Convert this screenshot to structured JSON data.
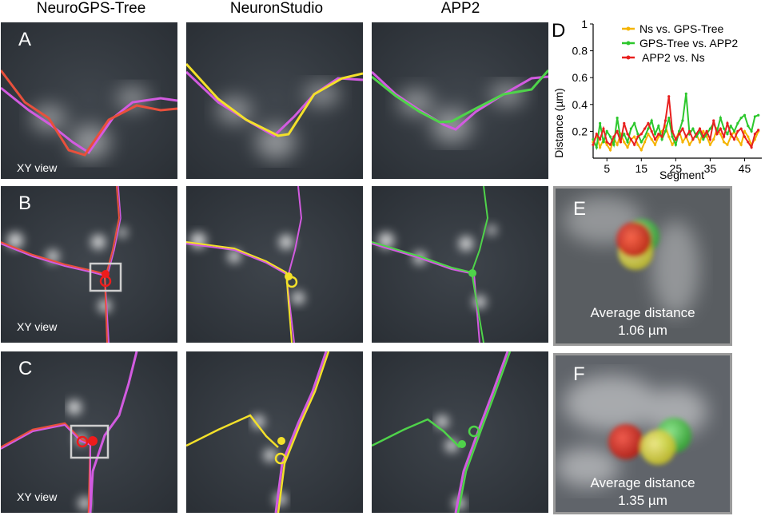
{
  "columns": [
    "NeuroGPS-Tree",
    "NeuronStudio",
    "APP2"
  ],
  "rows": [
    {
      "label": "A",
      "view": "XY view"
    },
    {
      "label": "B",
      "view": "XY view"
    },
    {
      "label": "C",
      "view": "XY view"
    }
  ],
  "colors": {
    "ns_vs_gps": "#f5b400",
    "gps_vs_app2": "#2cc72c",
    "app2_vs_ns": "#e8201f",
    "trace_purple": "#d25be0",
    "trace_red": "#e8503c",
    "trace_yellow": "#f3e02a",
    "trace_green": "#4fd34a"
  },
  "insets": [
    {
      "label": "E",
      "caption_line1": "Average distance",
      "caption_line2": "1.06 µm"
    },
    {
      "label": "F",
      "caption_line1": "Average distance",
      "caption_line2": "1.35 µm"
    }
  ],
  "chart_data": {
    "type": "line",
    "panel_label": "D",
    "xlabel": "Segment",
    "ylabel": "Distance (µm)",
    "xlim": [
      1,
      50
    ],
    "ylim": [
      0,
      1
    ],
    "xticks": [
      "5",
      "15",
      "25",
      "35",
      "45"
    ],
    "yticks": [
      "0.2",
      "0.4",
      "0.6",
      "0.8",
      "1"
    ],
    "legend_position": "top-right",
    "x": [
      1,
      2,
      3,
      4,
      5,
      6,
      7,
      8,
      9,
      10,
      11,
      12,
      13,
      14,
      15,
      16,
      17,
      18,
      19,
      20,
      21,
      22,
      23,
      24,
      25,
      26,
      27,
      28,
      29,
      30,
      31,
      32,
      33,
      34,
      35,
      36,
      37,
      38,
      39,
      40,
      41,
      42,
      43,
      44,
      45,
      46,
      47,
      48,
      49
    ],
    "series": [
      {
        "name": "Ns vs. GPS-Tree",
        "values": [
          0.12,
          0.17,
          0.08,
          0.14,
          0.1,
          0.06,
          0.15,
          0.1,
          0.18,
          0.12,
          0.08,
          0.14,
          0.16,
          0.1,
          0.06,
          0.12,
          0.18,
          0.14,
          0.1,
          0.16,
          0.2,
          0.24,
          0.16,
          0.1,
          0.14,
          0.2,
          0.12,
          0.16,
          0.1,
          0.14,
          0.18,
          0.12,
          0.2,
          0.16,
          0.1,
          0.14,
          0.22,
          0.18,
          0.12,
          0.1,
          0.16,
          0.2,
          0.14,
          0.1,
          0.2,
          0.16,
          0.1,
          0.14,
          0.2
        ]
      },
      {
        "name": "GPS-Tree vs. APP2",
        "values": [
          0.14,
          0.08,
          0.26,
          0.12,
          0.2,
          0.16,
          0.1,
          0.3,
          0.14,
          0.18,
          0.12,
          0.22,
          0.26,
          0.18,
          0.12,
          0.16,
          0.22,
          0.28,
          0.18,
          0.24,
          0.14,
          0.2,
          0.3,
          0.16,
          0.1,
          0.2,
          0.28,
          0.48,
          0.18,
          0.22,
          0.16,
          0.2,
          0.14,
          0.18,
          0.22,
          0.26,
          0.2,
          0.3,
          0.22,
          0.18,
          0.24,
          0.2,
          0.26,
          0.3,
          0.32,
          0.24,
          0.2,
          0.31,
          0.32
        ]
      },
      {
        "name": "APP2 vs. Ns",
        "values": [
          0.1,
          0.18,
          0.14,
          0.22,
          0.12,
          0.1,
          0.16,
          0.2,
          0.12,
          0.26,
          0.18,
          0.14,
          0.1,
          0.16,
          0.18,
          0.22,
          0.26,
          0.2,
          0.14,
          0.18,
          0.16,
          0.28,
          0.46,
          0.2,
          0.14,
          0.18,
          0.22,
          0.16,
          0.2,
          0.14,
          0.18,
          0.22,
          0.16,
          0.2,
          0.14,
          0.28,
          0.18,
          0.22,
          0.16,
          0.26,
          0.18,
          0.14,
          0.2,
          0.22,
          0.16,
          0.12,
          0.08,
          0.18,
          0.21
        ]
      }
    ]
  }
}
